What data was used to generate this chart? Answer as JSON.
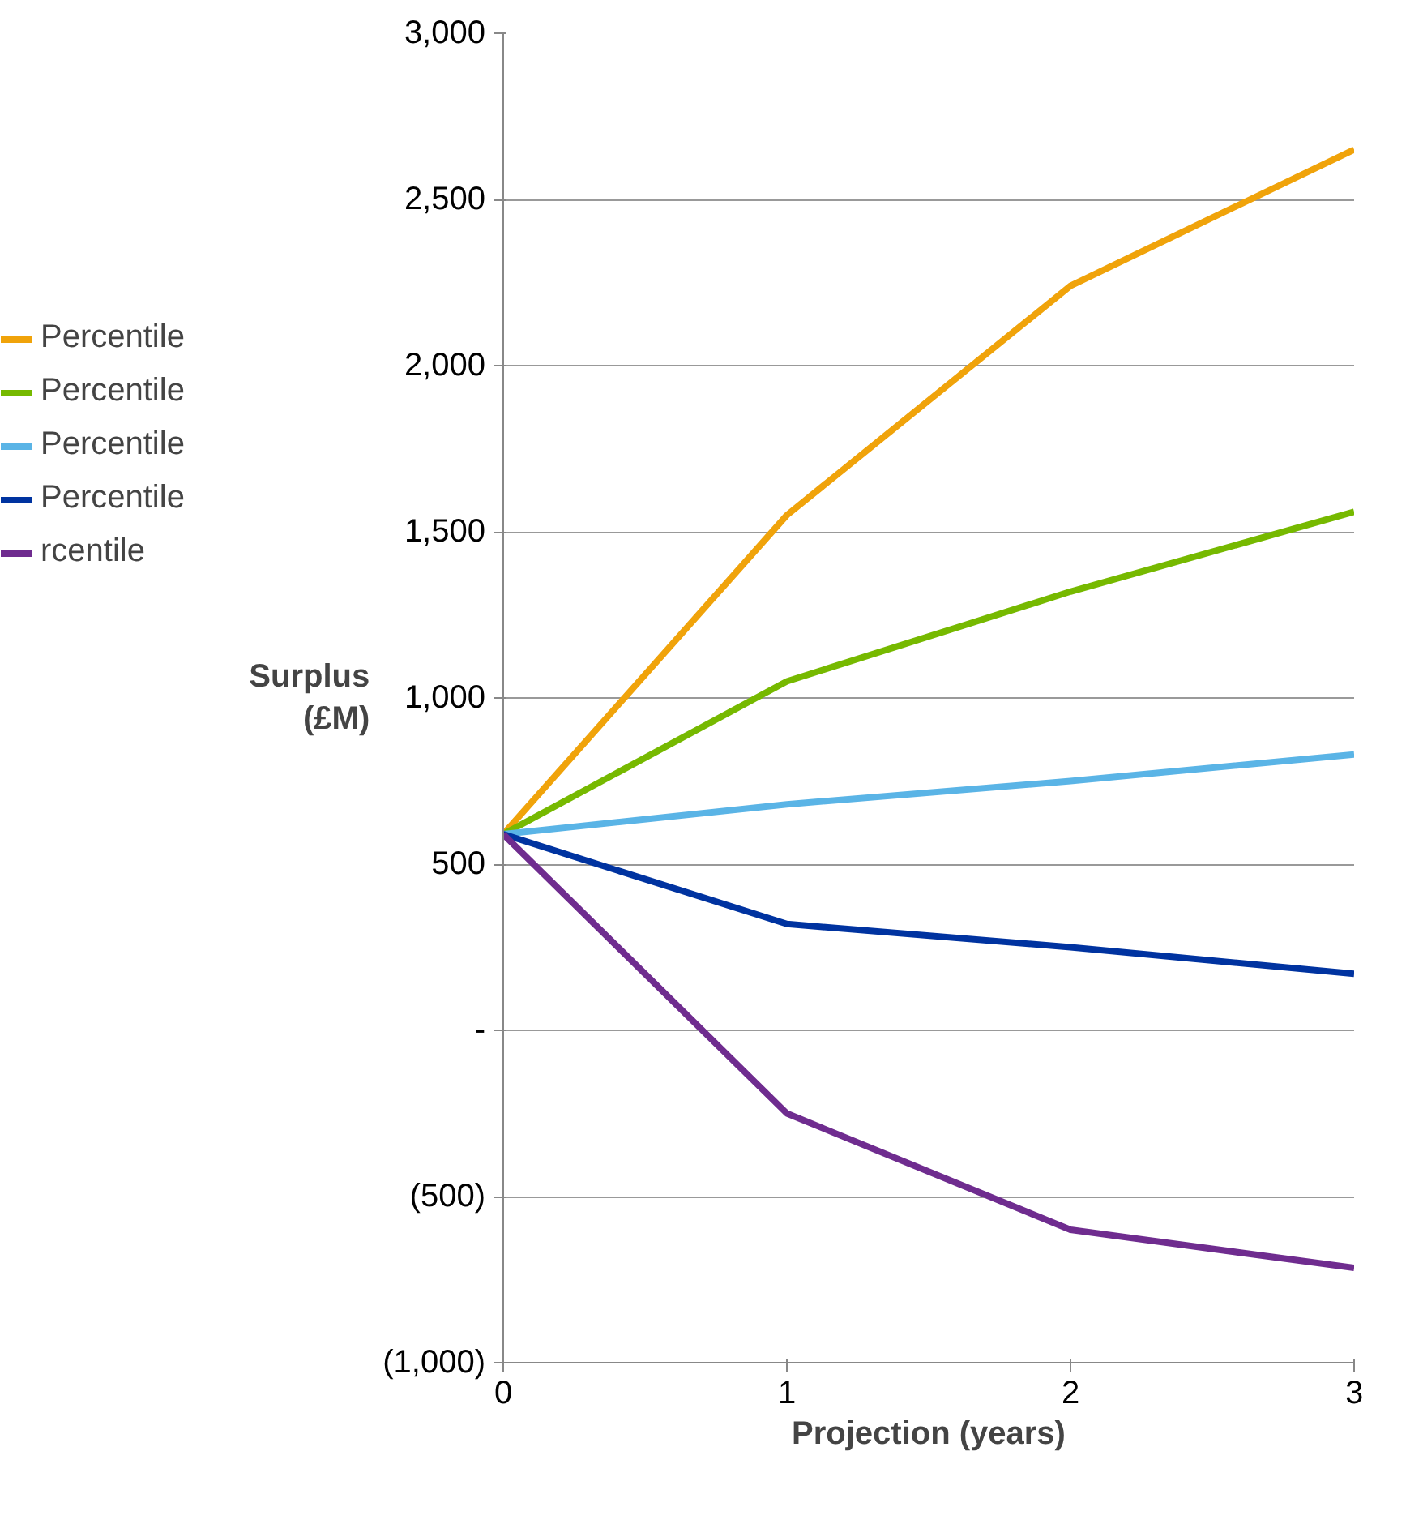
{
  "chart_data": {
    "type": "line",
    "xlabel": "Projection (years)",
    "ylabel": "Surplus\n(£M)",
    "x": [
      0,
      1,
      2,
      3
    ],
    "series": [
      {
        "name": "Percentile",
        "color": "#f0a30a",
        "values": [
          590,
          1550,
          2240,
          2650
        ]
      },
      {
        "name": "Percentile",
        "color": "#76b900",
        "values": [
          590,
          1050,
          1320,
          1560
        ]
      },
      {
        "name": "Percentile",
        "color": "#5ab4e6",
        "values": [
          590,
          680,
          750,
          830
        ]
      },
      {
        "name": "Percentile",
        "color": "#0033a0",
        "values": [
          590,
          320,
          250,
          170
        ]
      },
      {
        "name": "rcentile",
        "color": "#6f2c8f",
        "values": [
          590,
          -250,
          -600,
          -715
        ]
      }
    ],
    "xlim": [
      0,
      3
    ],
    "xticks": [
      0,
      1,
      2,
      3
    ],
    "ylim": [
      -1000,
      3000
    ],
    "yticks": [
      {
        "value": -1000,
        "label": "(1,000)"
      },
      {
        "value": -500,
        "label": "(500)"
      },
      {
        "value": 0,
        "label": "-"
      },
      "500",
      "1,000",
      "1,500",
      "2,000",
      "2,500",
      "3,000"
    ],
    "grid": "y",
    "legend": "left",
    "line_style": "solid",
    "marker": "none"
  }
}
